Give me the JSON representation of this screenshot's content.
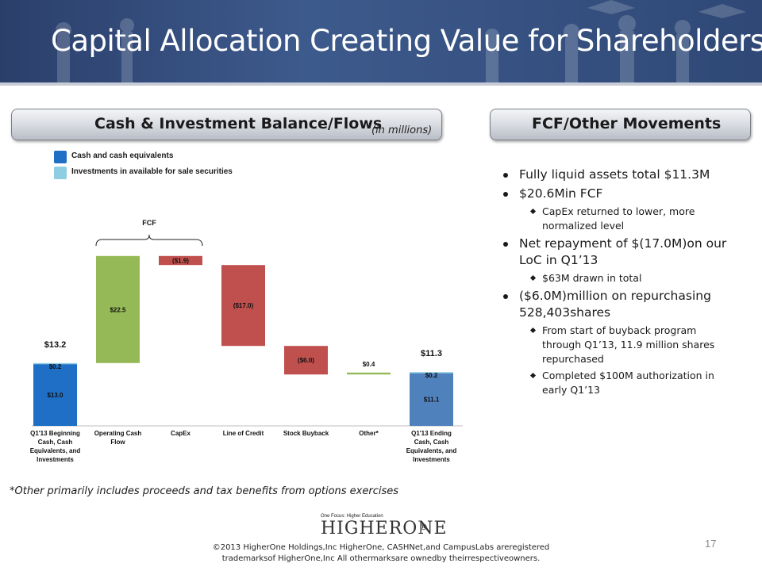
{
  "slide": {
    "title": "Capital Allocation Creating Value for Shareholders",
    "page_number": "17"
  },
  "left_panel": {
    "heading": "Cash & Investment Balance/Flows",
    "unit_note": "(in millions)"
  },
  "right_panel": {
    "heading": "FCF/Other Movements",
    "bullets": [
      {
        "text": "Fully liquid assets total $11.3M",
        "sub": []
      },
      {
        "text": "$20.6Min FCF",
        "sub": [
          "CapEx returned  to lower, more normalized level"
        ]
      },
      {
        "text": "Net repayment of $(17.0M)on our LoC in Q1’13",
        "sub": [
          "$63M drawn in total"
        ]
      },
      {
        "text": "($6.0M)million on repurchasing 528,403shares",
        "sub": [
          "From  start of buyback program through  Q1’13, 11.9 million shares repurchased",
          "Completed $100M authorization in early Q1’13"
        ]
      }
    ]
  },
  "colors": {
    "cash": "#1f6fc6",
    "investments": "#8fcde3",
    "increase": "#96b957",
    "decrease": "#c0504d",
    "ending_cash": "#4f81bd",
    "banner": "#2f4876"
  },
  "chart_data": {
    "type": "bar",
    "subtype": "waterfall",
    "categories": [
      "Q1'13 Beginning Cash, Cash Equivalents, and Investments",
      "Operating Cash Flow",
      "CapEx",
      "Line of Credit",
      "Stock Buyback",
      "Other*",
      "Q1'13 Ending Cash, Cash Equivalents, and Investments"
    ],
    "category_lines": [
      [
        "Q1'13 Beginning",
        "Cash, Cash",
        "Equivalents, and",
        "Investments"
      ],
      [
        "Operating Cash",
        "Flow"
      ],
      [
        "CapEx"
      ],
      [
        "Line of Credit"
      ],
      [
        "Stock Buyback"
      ],
      [
        "Other*"
      ],
      [
        "Q1'13 Ending",
        "Cash, Cash",
        "Equivalents, and",
        "Investments"
      ]
    ],
    "legend": [
      {
        "name": "Cash and cash equivalents",
        "color": "#1f6fc6"
      },
      {
        "name": "Investments in available  for sale securities",
        "color": "#8fcde3"
      }
    ],
    "totals": [
      {
        "category": "Q1'13 Beginning Cash, Cash Equivalents, and Investments",
        "cash": 13.0,
        "investments": 0.2,
        "total": 13.2,
        "cash_label": "$13.0",
        "investments_label": "$0.2",
        "total_label": "$13.2"
      },
      {
        "category": "Q1'13 Ending Cash, Cash Equivalents, and Investments",
        "cash": 11.1,
        "investments": 0.2,
        "total": 11.3,
        "cash_label": "$11.1",
        "investments_label": "$0.2",
        "total_label": "$11.3"
      }
    ],
    "changes": [
      {
        "category": "Operating Cash Flow",
        "value": 22.5,
        "label": "$22.5"
      },
      {
        "category": "CapEx",
        "value": -1.9,
        "label": "($1.9)"
      },
      {
        "category": "Line of Credit",
        "value": -17.0,
        "label": "($17.0)"
      },
      {
        "category": "Stock Buyback",
        "value": -6.0,
        "label": "($6.0)"
      },
      {
        "category": "Other*",
        "value": 0.4,
        "label": "$0.4"
      }
    ],
    "bracket_label": "FCF",
    "bracket_spans": [
      "Operating Cash Flow",
      "CapEx"
    ],
    "ylim": [
      0,
      36.5
    ]
  },
  "footnote": "*Other primarily includes proceeds and tax benefits from options exercises",
  "logo": {
    "tagline": "One Focus: Higher Education",
    "wordmark": "HIGHERONE",
    "registered": "®"
  },
  "copyright": [
    "©2013 HigherOne Holdings,Inc  HigherOne, CASHNet,and CampusLabs areregistered",
    "trademarksof HigherOne,Inc  All othermarksare ownedby theirrespectiveowners."
  ]
}
